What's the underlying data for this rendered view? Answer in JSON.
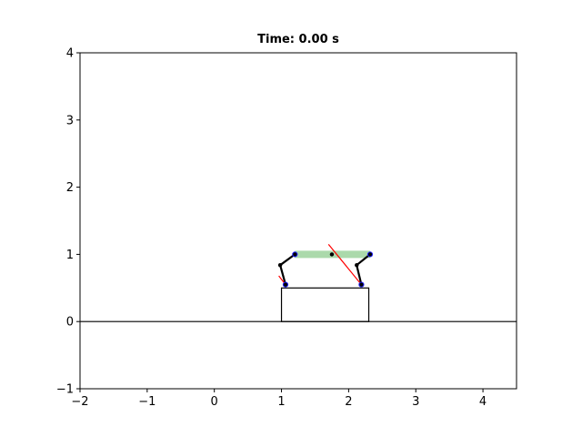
{
  "chart_data": {
    "type": "line",
    "title": "Time: 0.00 s",
    "xlim": [
      -2,
      4.5
    ],
    "ylim": [
      -1,
      4
    ],
    "x_ticks": [
      -2,
      -1,
      0,
      1,
      2,
      3,
      4
    ],
    "y_ticks": [
      -1,
      0,
      1,
      2,
      3,
      4
    ],
    "x_tick_labels": [
      "−2",
      "−1",
      "0",
      "1",
      "2",
      "3",
      "4"
    ],
    "y_tick_labels": [
      "−1",
      "0",
      "1",
      "2",
      "3",
      "4"
    ],
    "grid": false,
    "ground": {
      "y": 0,
      "color": "#000000"
    },
    "box": {
      "x": [
        1.0,
        2.3
      ],
      "y": [
        0.0,
        0.5
      ],
      "color": "#000000"
    },
    "platform": {
      "x": [
        1.2,
        2.32
      ],
      "y": 1.0,
      "color": "#2ca02c"
    },
    "legs": [
      {
        "name": "left leg",
        "points": [
          [
            1.2,
            1.0
          ],
          [
            0.98,
            0.84
          ],
          [
            1.06,
            0.55
          ]
        ],
        "color": "#000000"
      },
      {
        "name": "right leg",
        "points": [
          [
            2.32,
            1.0
          ],
          [
            2.12,
            0.84
          ],
          [
            2.19,
            0.55
          ]
        ],
        "color": "#000000"
      }
    ],
    "joints": {
      "blue": [
        [
          1.2,
          1.0
        ],
        [
          2.32,
          1.0
        ],
        [
          1.06,
          0.55
        ],
        [
          2.19,
          0.55
        ]
      ],
      "black": [
        [
          0.98,
          0.84
        ],
        [
          2.12,
          0.84
        ],
        [
          1.75,
          1.0
        ]
      ]
    },
    "force_vectors": [
      {
        "from": [
          1.06,
          0.55
        ],
        "to": [
          0.96,
          0.68
        ],
        "color": "#ff0000"
      },
      {
        "from": [
          2.19,
          0.55
        ],
        "to": [
          1.7,
          1.15
        ],
        "color": "#ff0000"
      }
    ]
  }
}
